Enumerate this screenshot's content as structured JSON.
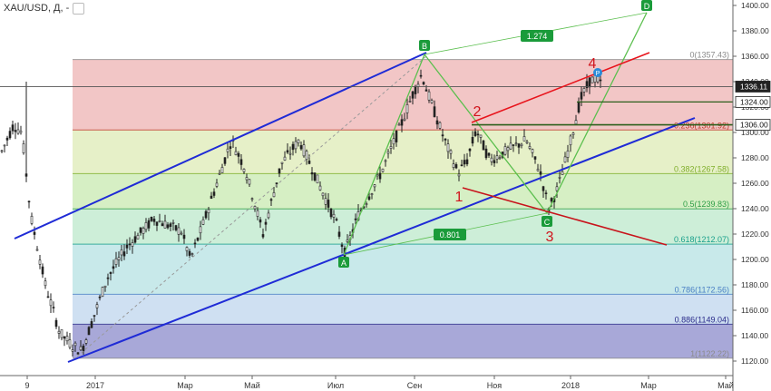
{
  "toolbar": {
    "title": "XAU/USD, Д, -",
    "icons": [
      "collapse-arrow-icon",
      "settings-square-icon"
    ]
  },
  "chart_data": {
    "type": "candlestick",
    "symbol": "XAU/USD",
    "timeframe": "Д",
    "price_axis": {
      "ticks": [
        "1400.00",
        "1380.00",
        "1360.00",
        "1340.00",
        "1320.00",
        "1300.00",
        "1280.00",
        "1260.00",
        "1240.00",
        "1220.00",
        "1200.00",
        "1180.00",
        "1160.00",
        "1140.00",
        "1120.00"
      ],
      "range": [
        1117,
        1402
      ]
    },
    "time_axis": {
      "labels": [
        "9",
        "2017",
        "Мар",
        "Май",
        "Июл",
        "Сен",
        "Ноя",
        "2018",
        "Мар",
        "Май"
      ]
    },
    "price_labels": [
      {
        "text": "1336.11",
        "price": 1336.11,
        "style": "dark"
      },
      {
        "text": "1324.00",
        "price": 1324.0,
        "style": "outline"
      },
      {
        "text": "1306.00",
        "price": 1306.0,
        "style": "outline"
      }
    ],
    "fib_levels": [
      {
        "label": "0(1357.43)",
        "price": 1357.43,
        "color": "#8a8a8a"
      },
      {
        "label": "0.236(1301.92)",
        "price": 1301.92,
        "color": "#c0392b"
      },
      {
        "label": "0.382(1267.58)",
        "price": 1267.58,
        "color": "#7fae2a"
      },
      {
        "label": "0.5(1239.83)",
        "price": 1239.83,
        "color": "#2e9e46"
      },
      {
        "label": "0.618(1212.07)",
        "price": 1212.07,
        "color": "#19a08c"
      },
      {
        "label": "0.786(1172.56)",
        "price": 1172.56,
        "color": "#4a7fc4"
      },
      {
        "label": "0.886(1149.04)",
        "price": 1149.04,
        "color": "#2a2a8a"
      },
      {
        "label": "1(1122.22)",
        "price": 1122.22,
        "color": "#8a8a8a"
      }
    ],
    "harmonic_points": [
      {
        "label": "A",
        "price": 1204
      },
      {
        "label": "B",
        "price": 1358
      },
      {
        "label": "C",
        "price": 1236
      },
      {
        "label": "D",
        "price": 1400
      }
    ],
    "ratio_labels": [
      "1.274",
      "0.801"
    ],
    "wave_labels": [
      "1",
      "2",
      "3",
      "4"
    ],
    "marker_label": "P"
  }
}
